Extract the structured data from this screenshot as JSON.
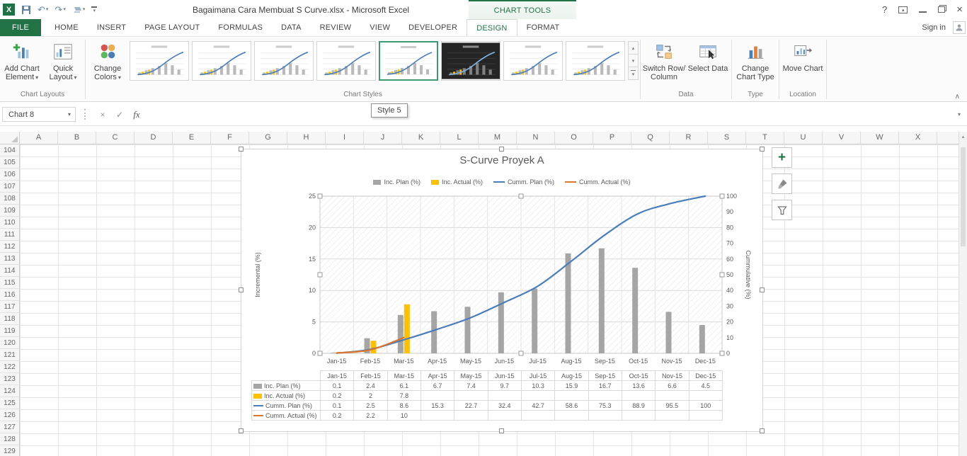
{
  "titlebar": {
    "title": "Bagaimana Cara Membuat S Curve.xlsx - Microsoft Excel",
    "contextual_label": "CHART TOOLS",
    "sign_in": "Sign in"
  },
  "tabs": {
    "items": [
      {
        "label": "FILE",
        "file": true
      },
      {
        "label": "HOME"
      },
      {
        "label": "INSERT"
      },
      {
        "label": "PAGE LAYOUT"
      },
      {
        "label": "FORMULAS"
      },
      {
        "label": "DATA"
      },
      {
        "label": "REVIEW"
      },
      {
        "label": "VIEW"
      },
      {
        "label": "DEVELOPER"
      },
      {
        "label": "DESIGN",
        "active": true
      },
      {
        "label": "FORMAT"
      }
    ]
  },
  "ribbon": {
    "buttons": {
      "add_chart_element": "Add Chart Element",
      "quick_layout": "Quick Layout",
      "change_colors": "Change Colors",
      "switch_row_column": "Switch Row/ Column",
      "select_data": "Select Data",
      "change_chart_type": "Change Chart Type",
      "move_chart": "Move Chart"
    },
    "group_labels": [
      "Chart Layouts",
      "Chart Styles",
      "Data",
      "Type",
      "Location"
    ],
    "style_thumbnails": [
      {
        "name": "Style 1"
      },
      {
        "name": "Style 2"
      },
      {
        "name": "Style 3"
      },
      {
        "name": "Style 4"
      },
      {
        "name": "Style 5",
        "selected": true
      },
      {
        "name": "Style 6",
        "dark": true
      },
      {
        "name": "Style 7"
      },
      {
        "name": "Style 8"
      }
    ],
    "tooltip": "Style 5"
  },
  "formula_bar": {
    "name_box": "Chart 8",
    "fx_label": "fx",
    "formula": ""
  },
  "sheet": {
    "columns": [
      "A",
      "B",
      "C",
      "D",
      "E",
      "F",
      "G",
      "H",
      "I",
      "J",
      "K",
      "L",
      "M",
      "N",
      "O",
      "P",
      "Q",
      "R",
      "S",
      "T",
      "U",
      "V",
      "W",
      "X"
    ],
    "row_start": 104,
    "row_end": 129
  },
  "icons": {
    "excel_logo": "X",
    "undo": "↶",
    "redo": "↷",
    "dropdown": "▾",
    "up": "▴",
    "help": "?",
    "close": "×",
    "cancel": "×",
    "enter": "✓",
    "collapse_ribbon": "∧",
    "add": "+"
  },
  "chart_data": {
    "type": "combo",
    "title": "S-Curve Proyek A",
    "categories": [
      "Jan-15",
      "Feb-15",
      "Mar-15",
      "Apr-15",
      "May-15",
      "Jun-15",
      "Jul-15",
      "Aug-15",
      "Sep-15",
      "Oct-15",
      "Nov-15",
      "Dec-15"
    ],
    "series": [
      {
        "name": "Inc. Plan (%)",
        "kind": "bar",
        "axis": "left",
        "color": "#a5a5a5",
        "values": [
          0.1,
          2.4,
          6.1,
          6.7,
          7.4,
          9.7,
          10.3,
          15.9,
          16.7,
          13.6,
          6.6,
          4.5
        ],
        "table": [
          "0.1",
          "2.4",
          "6.1",
          "6.7",
          "7.4",
          "9.7",
          "10.3",
          "15.9",
          "16.7",
          "13.6",
          "6.6",
          "4.5"
        ]
      },
      {
        "name": "Inc. Actual (%)",
        "kind": "bar",
        "axis": "left",
        "color": "#ffc000",
        "values": [
          0.2,
          2,
          7.8,
          null,
          null,
          null,
          null,
          null,
          null,
          null,
          null,
          null
        ],
        "table": [
          "0.2",
          "2",
          "7.8",
          "",
          "",
          "",
          "",
          "",
          "",
          "",
          "",
          ""
        ]
      },
      {
        "name": "Cumm. Plan (%)",
        "kind": "line",
        "axis": "right",
        "color": "#4a7ebb",
        "values": [
          0.1,
          2.5,
          8.6,
          15.3,
          22.7,
          32.4,
          42.7,
          58.6,
          75.3,
          88.9,
          95.5,
          100
        ],
        "table": [
          "0.1",
          "2.5",
          "8.6",
          "15.3",
          "22.7",
          "32.4",
          "42.7",
          "58.6",
          "75.3",
          "88.9",
          "95.5",
          "100"
        ]
      },
      {
        "name": "Cumm. Actual (%)",
        "kind": "line",
        "axis": "right",
        "color": "#d9772f",
        "values": [
          0.2,
          2.2,
          10,
          null,
          null,
          null,
          null,
          null,
          null,
          null,
          null,
          null
        ],
        "table": [
          "0.2",
          "2.2",
          "10",
          "",
          "",
          "",
          "",
          "",
          "",
          "",
          "",
          ""
        ]
      }
    ],
    "left_axis": {
      "title": "Incremental (%)",
      "min": 0,
      "max": 25,
      "step": 5
    },
    "right_axis": {
      "title": "Cummulative (%)",
      "min": 0,
      "max": 100,
      "step": 10
    },
    "grid": true,
    "legend_position": "top"
  }
}
